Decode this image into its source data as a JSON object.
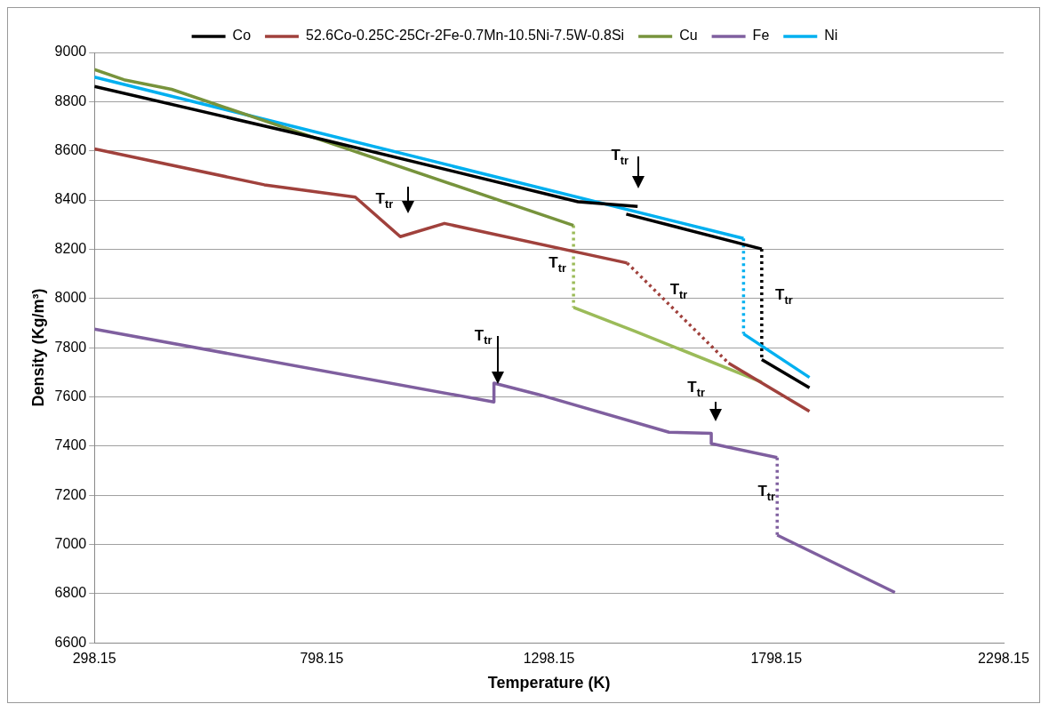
{
  "chart_data": {
    "type": "line",
    "xlabel": "Temperature (K)",
    "ylabel": "Density (Kg/m³)",
    "xlim": [
      298.15,
      2298.15
    ],
    "xticks": [
      298.15,
      798.15,
      1298.15,
      1798.15,
      2298.15
    ],
    "ylim": [
      6600,
      9000
    ],
    "yticks": [
      6600,
      6800,
      7000,
      7200,
      7400,
      7600,
      7800,
      8000,
      8200,
      8400,
      8600,
      8800,
      9000
    ],
    "grid": "y",
    "legend": "top",
    "marker": "none",
    "line_style": "solid",
    "series": [
      {
        "name": "Co",
        "color": "#000000",
        "x": [
          298.15,
          798.15,
          1362,
          1493
        ],
        "values": [
          8862,
          8647,
          8393,
          8374
        ]
      },
      {
        "name": "52.6Co-0.25C-25Cr-2Fe-0.7Mn-10.5Ni-7.5W-0.8Si",
        "color": "#a0413c",
        "x": [
          298.15,
          672,
          872,
          971,
          1068,
          1470
        ],
        "values": [
          8608,
          8462,
          8412,
          8251,
          8305,
          8144
        ]
      },
      {
        "name": "Cu",
        "color": "#77933c",
        "x": [
          298.15,
          363,
          468,
          1352
        ],
        "values": [
          8931,
          8889,
          8850,
          8297
        ]
      },
      {
        "name": "Fe",
        "color": "#7f5f9f",
        "x": [
          298.15,
          1177,
          1177,
          1274,
          1562,
          1655,
          1655,
          1800
        ],
        "values": [
          7875,
          7579,
          7656,
          7610,
          7456,
          7452,
          7410,
          7353
        ]
      },
      {
        "name": "Ni",
        "color": "#00b0f0",
        "x": [
          298.15,
          1726
        ],
        "values": [
          8900,
          8244
        ]
      },
      {
        "color": "#000000",
        "x": [
          1468,
          1766
        ],
        "values": [
          8343,
          8201
        ]
      },
      {
        "color": "#000000",
        "x": [
          1766,
          1871
        ],
        "values": [
          7752,
          7637
        ]
      },
      {
        "color": "#a0413c",
        "x": [
          1693,
          1871
        ],
        "values": [
          7737,
          7541
        ]
      },
      {
        "color": "#9bbb59",
        "x": [
          1352,
          1487,
          1766
        ],
        "values": [
          7963,
          7867,
          7660
        ]
      },
      {
        "color": "#7f5f9f",
        "x": [
          1800,
          2059
        ],
        "values": [
          7038,
          6805
        ]
      },
      {
        "color": "#00b0f0",
        "x": [
          1726,
          1871
        ],
        "values": [
          7856,
          7679
        ]
      },
      {
        "color": "#000000",
        "line_style": "dotted",
        "x": [
          1766,
          1766
        ],
        "values": [
          8201,
          7752
        ]
      },
      {
        "color": "#a0413c",
        "line_style": "dotted",
        "x": [
          1470,
          1693
        ],
        "values": [
          8144,
          7737
        ]
      },
      {
        "color": "#9bbb59",
        "line_style": "dotted",
        "x": [
          1352,
          1352
        ],
        "values": [
          8297,
          7963
        ]
      },
      {
        "color": "#7f5f9f",
        "line_style": "dotted",
        "x": [
          1800,
          1800
        ],
        "values": [
          7353,
          7038
        ]
      },
      {
        "color": "#00b0f0",
        "line_style": "dotted",
        "x": [
          1726,
          1726
        ],
        "values": [
          8244,
          7856
        ]
      }
    ],
    "annotations": [
      {
        "text": "T$_{tr}$",
        "x": 971,
        "y": 8251
      },
      {
        "text": "T$_{tr}$",
        "x": 1493,
        "y": 8374
      },
      {
        "text": "T$_{tr}$",
        "x": 1352,
        "y": 8130
      },
      {
        "text": "T$_{tr}$",
        "x": 1560,
        "y": 7980
      },
      {
        "text": "T$_{tr}$",
        "x": 1766,
        "y": 8013
      },
      {
        "text": "T$_{tr}$",
        "x": 1177,
        "y": 7656
      },
      {
        "text": "T$_{tr}$",
        "x": 1655,
        "y": 7452
      },
      {
        "text": "T$_{tr}$",
        "x": 1800,
        "y": 7214
      }
    ]
  }
}
